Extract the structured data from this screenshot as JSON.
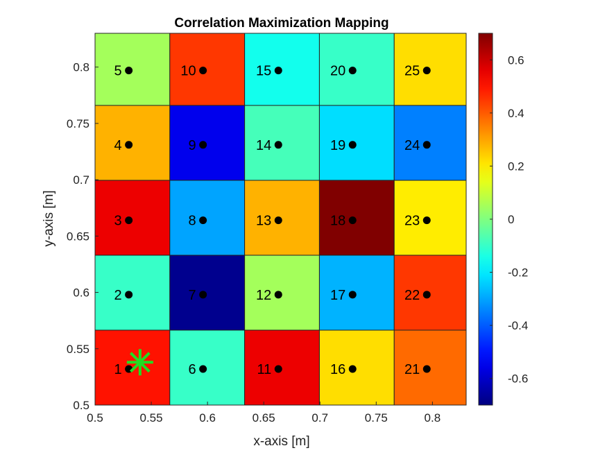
{
  "chart_data": {
    "type": "heatmap",
    "title": "Correlation Maximization Mapping",
    "xlabel": "x-axis [m]",
    "ylabel": "y-axis [m]",
    "xlim": [
      0.5,
      0.83
    ],
    "ylim": [
      0.5,
      0.83
    ],
    "xticks": [
      0.5,
      0.55,
      0.6,
      0.65,
      0.7,
      0.75,
      0.8
    ],
    "xtick_labels": [
      "0.5",
      "0.55",
      "0.6",
      "0.65",
      "0.7",
      "0.75",
      "0.8"
    ],
    "yticks": [
      0.5,
      0.55,
      0.6,
      0.65,
      0.7,
      0.75,
      0.8
    ],
    "ytick_labels": [
      "0.5",
      "0.55",
      "0.6",
      "0.65",
      "0.7",
      "0.75",
      "0.8"
    ],
    "colormap": "jet",
    "clim": [
      -0.7,
      0.7
    ],
    "colorbar_ticks": [
      -0.6,
      -0.4,
      -0.2,
      0,
      0.2,
      0.4,
      0.6
    ],
    "colorbar_tick_labels": [
      "-0.6",
      "-0.4",
      "-0.2",
      "0",
      "0.2",
      "0.4",
      "0.6"
    ],
    "grid": false,
    "cells": [
      {
        "id": "1",
        "label": "1",
        "x": 0.53,
        "y": 0.532,
        "x0": 0.5,
        "x1": 0.5665,
        "y0": 0.5,
        "y1": 0.5665,
        "value": 0.5
      },
      {
        "id": "2",
        "label": "2",
        "x": 0.53,
        "y": 0.598,
        "x0": 0.5,
        "x1": 0.5665,
        "y0": 0.5665,
        "y1": 0.633,
        "value": -0.1
      },
      {
        "id": "3",
        "label": "3",
        "x": 0.53,
        "y": 0.664,
        "x0": 0.5,
        "x1": 0.5665,
        "y0": 0.633,
        "y1": 0.6995,
        "value": 0.55
      },
      {
        "id": "4",
        "label": "4",
        "x": 0.53,
        "y": 0.731,
        "x0": 0.5,
        "x1": 0.5665,
        "y0": 0.6995,
        "y1": 0.766,
        "value": 0.28
      },
      {
        "id": "5",
        "label": "5",
        "x": 0.53,
        "y": 0.797,
        "x0": 0.5,
        "x1": 0.5665,
        "y0": 0.766,
        "y1": 0.8325,
        "value": 0.05
      },
      {
        "id": "6",
        "label": "6",
        "x": 0.596,
        "y": 0.532,
        "x0": 0.5665,
        "x1": 0.633,
        "y0": 0.5,
        "y1": 0.5665,
        "value": -0.1
      },
      {
        "id": "7",
        "label": "7",
        "x": 0.596,
        "y": 0.598,
        "x0": 0.5665,
        "x1": 0.633,
        "y0": 0.5665,
        "y1": 0.633,
        "value": -0.68
      },
      {
        "id": "8",
        "label": "8",
        "x": 0.596,
        "y": 0.664,
        "x0": 0.5665,
        "x1": 0.633,
        "y0": 0.633,
        "y1": 0.6995,
        "value": -0.3
      },
      {
        "id": "9",
        "label": "9",
        "x": 0.596,
        "y": 0.731,
        "x0": 0.5665,
        "x1": 0.633,
        "y0": 0.6995,
        "y1": 0.766,
        "value": -0.55
      },
      {
        "id": "10",
        "label": "10",
        "x": 0.596,
        "y": 0.797,
        "x0": 0.5665,
        "x1": 0.633,
        "y0": 0.766,
        "y1": 0.8325,
        "value": 0.45
      },
      {
        "id": "11",
        "label": "11",
        "x": 0.663,
        "y": 0.532,
        "x0": 0.633,
        "x1": 0.6995,
        "y0": 0.5,
        "y1": 0.5665,
        "value": 0.55
      },
      {
        "id": "12",
        "label": "12",
        "x": 0.663,
        "y": 0.598,
        "x0": 0.633,
        "x1": 0.6995,
        "y0": 0.5665,
        "y1": 0.633,
        "value": 0.05
      },
      {
        "id": "13",
        "label": "13",
        "x": 0.663,
        "y": 0.664,
        "x0": 0.633,
        "x1": 0.6995,
        "y0": 0.633,
        "y1": 0.6995,
        "value": 0.28
      },
      {
        "id": "14",
        "label": "14",
        "x": 0.663,
        "y": 0.731,
        "x0": 0.633,
        "x1": 0.6995,
        "y0": 0.6995,
        "y1": 0.766,
        "value": -0.08
      },
      {
        "id": "15",
        "label": "15",
        "x": 0.663,
        "y": 0.797,
        "x0": 0.633,
        "x1": 0.6995,
        "y0": 0.766,
        "y1": 0.8325,
        "value": -0.15
      },
      {
        "id": "16",
        "label": "16",
        "x": 0.729,
        "y": 0.532,
        "x0": 0.6995,
        "x1": 0.766,
        "y0": 0.5,
        "y1": 0.5665,
        "value": 0.22
      },
      {
        "id": "17",
        "label": "17",
        "x": 0.729,
        "y": 0.598,
        "x0": 0.6995,
        "x1": 0.766,
        "y0": 0.5665,
        "y1": 0.633,
        "value": -0.28
      },
      {
        "id": "18",
        "label": "18",
        "x": 0.729,
        "y": 0.664,
        "x0": 0.6995,
        "x1": 0.766,
        "y0": 0.633,
        "y1": 0.6995,
        "value": 0.7
      },
      {
        "id": "19",
        "label": "19",
        "x": 0.729,
        "y": 0.731,
        "x0": 0.6995,
        "x1": 0.766,
        "y0": 0.6995,
        "y1": 0.766,
        "value": -0.22
      },
      {
        "id": "20",
        "label": "20",
        "x": 0.729,
        "y": 0.797,
        "x0": 0.6995,
        "x1": 0.766,
        "y0": 0.766,
        "y1": 0.8325,
        "value": -0.1
      },
      {
        "id": "21",
        "label": "21",
        "x": 0.795,
        "y": 0.532,
        "x0": 0.766,
        "x1": 0.8325,
        "y0": 0.5,
        "y1": 0.5665,
        "value": 0.38
      },
      {
        "id": "22",
        "label": "22",
        "x": 0.795,
        "y": 0.598,
        "x0": 0.766,
        "x1": 0.8325,
        "y0": 0.5665,
        "y1": 0.633,
        "value": 0.45
      },
      {
        "id": "23",
        "label": "23",
        "x": 0.795,
        "y": 0.664,
        "x0": 0.766,
        "x1": 0.8325,
        "y0": 0.633,
        "y1": 0.6995,
        "value": 0.2
      },
      {
        "id": "24",
        "label": "24",
        "x": 0.795,
        "y": 0.731,
        "x0": 0.766,
        "x1": 0.8325,
        "y0": 0.6995,
        "y1": 0.766,
        "value": -0.35
      },
      {
        "id": "25",
        "label": "25",
        "x": 0.795,
        "y": 0.797,
        "x0": 0.766,
        "x1": 0.8325,
        "y0": 0.766,
        "y1": 0.8325,
        "value": 0.22
      }
    ],
    "marker": {
      "x": 0.54,
      "y": 0.538,
      "symbol": "asterisk",
      "color": "#22dd22"
    },
    "colors": {
      "point": "#000000",
      "cell_edge": "#222222",
      "text": "#222222"
    }
  }
}
